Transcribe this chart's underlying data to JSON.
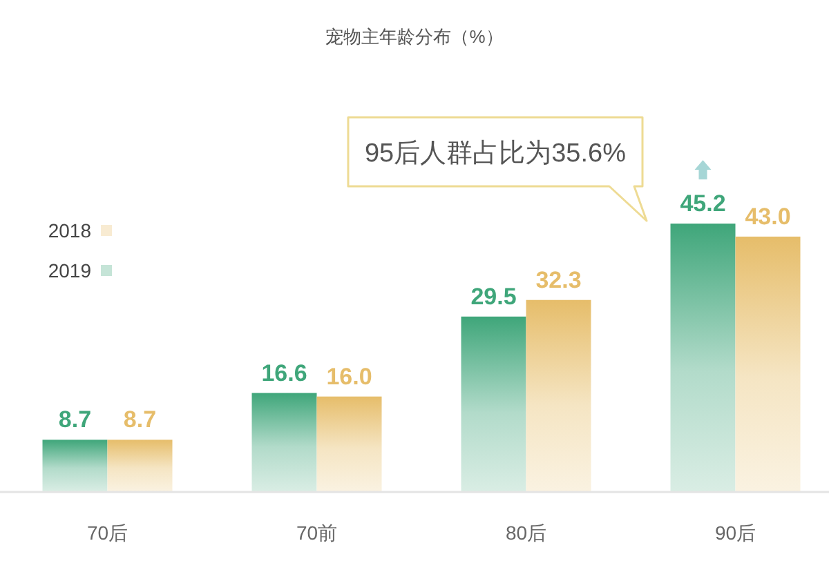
{
  "chart_data": {
    "type": "bar",
    "title": "宠物主年龄分布（%）",
    "categories": [
      "70后",
      "70前",
      "80后",
      "90后"
    ],
    "series": [
      {
        "name": "2019",
        "color": "#3fa67a",
        "values": [
          8.7,
          16.6,
          29.5,
          45.2
        ],
        "value_labels": [
          "8.7",
          "16.6",
          "29.5",
          "45.2"
        ]
      },
      {
        "name": "2018",
        "color": "#e6bd6a",
        "values": [
          8.7,
          16.0,
          32.3,
          43.0
        ],
        "value_labels": [
          "8.7",
          "16.0",
          "32.3",
          "43.0"
        ]
      }
    ],
    "legend": "top left",
    "annotations": [
      "95后人群占比为35.6%"
    ]
  }
}
